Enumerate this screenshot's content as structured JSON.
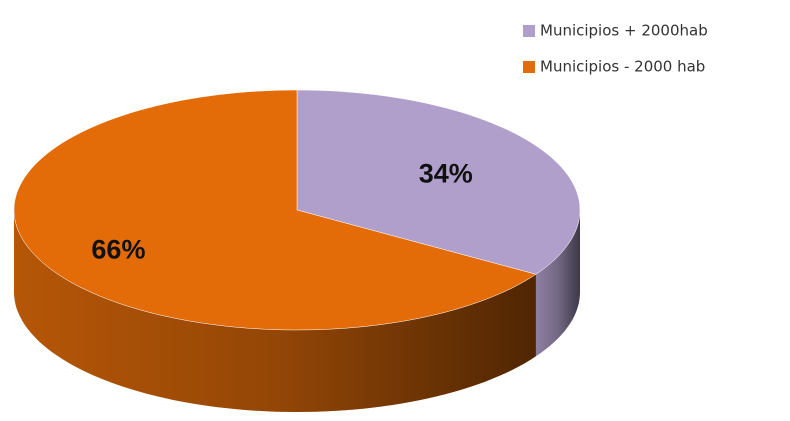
{
  "chart_data": {
    "type": "pie",
    "categories": [
      "Municipios + 2000hab",
      "Municipios - 2000 hab"
    ],
    "values": [
      34,
      66
    ],
    "value_labels": [
      "34%",
      "66%"
    ],
    "colors": [
      "#b09fca",
      "#e36c09"
    ]
  }
}
